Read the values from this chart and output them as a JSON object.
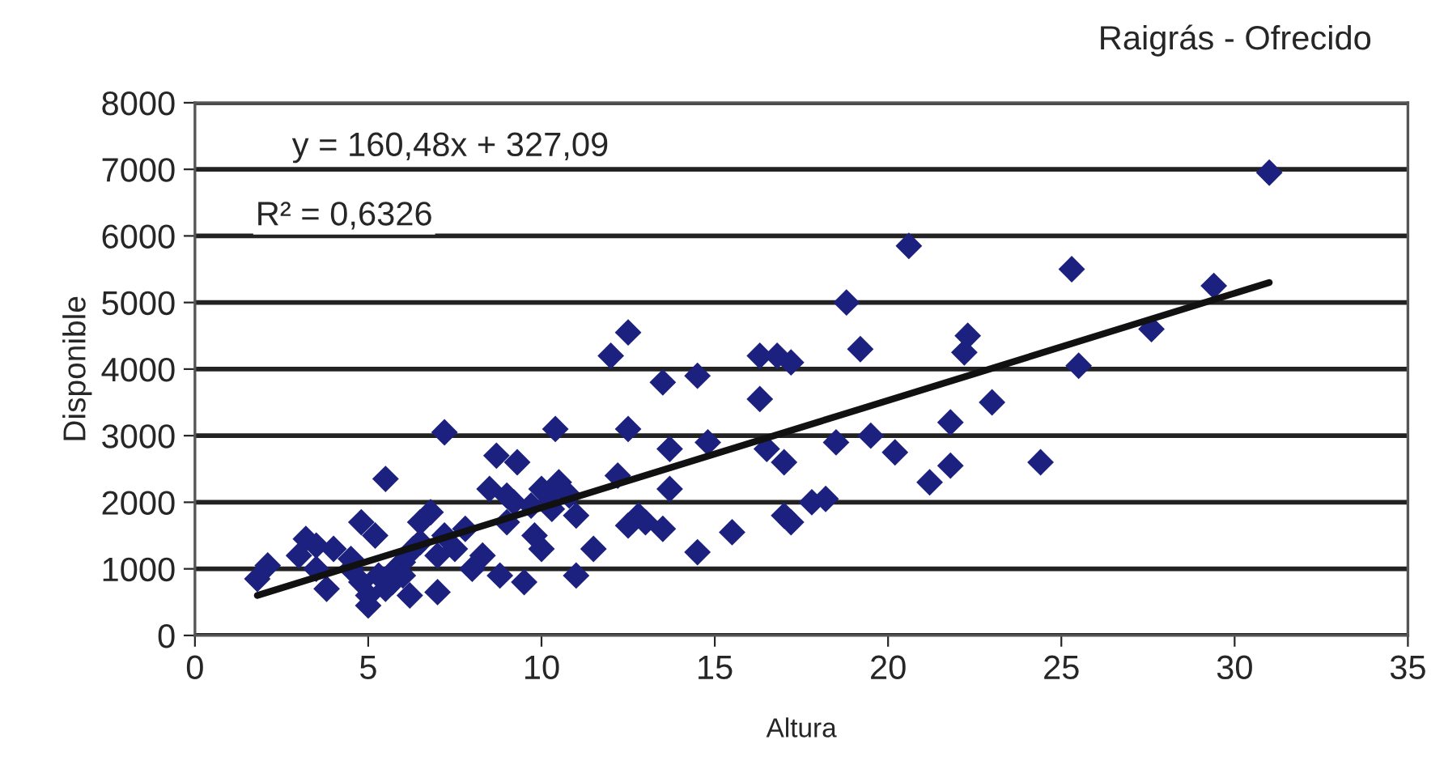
{
  "chart_data": {
    "type": "scatter",
    "title": "Raigrás - Ofrecido",
    "xlabel": "Altura",
    "ylabel": "Disponible",
    "annotations": [
      "y = 160,48x + 327,09",
      "R² = 0,6326"
    ],
    "series": [
      {
        "color": "#1c2180",
        "marker": "diamond",
        "x": [
          1.8,
          2.1,
          3.0,
          3.2,
          3.5,
          3.8,
          3.5,
          4.0,
          4.5,
          4.8,
          4.8,
          5.0,
          5.0,
          5.2,
          5.3,
          5.5,
          5.5,
          5.8,
          6.0,
          6.2,
          6.5,
          6.5,
          6.8,
          7.0,
          7.2,
          7.2,
          7.5,
          7.8,
          8.0,
          8.3,
          8.5,
          8.7,
          8.8,
          9.0,
          9.2,
          9.3,
          9.5,
          9.8,
          10.0,
          10.0,
          10.3,
          10.4,
          10.5,
          10.8,
          11.0,
          11.0,
          11.5,
          12.0,
          12.2,
          12.5,
          12.5,
          12.5,
          12.8,
          13.0,
          13.5,
          13.7,
          13.7,
          13.5,
          14.5,
          14.5,
          14.8,
          15.5,
          16.3,
          16.3,
          16.5,
          16.8,
          17.0,
          17.0,
          17.2,
          17.2,
          17.8,
          18.2,
          18.5,
          18.8,
          19.2,
          19.5,
          20.2,
          20.6,
          21.2,
          21.8,
          21.8,
          22.2,
          22.3,
          23.0,
          24.4,
          25.3,
          25.5,
          27.6,
          29.4,
          31.0,
          4.5,
          5.7,
          6.3,
          6.0,
          7.0,
          9.0,
          9.7,
          10.2
        ],
        "values": [
          850,
          1050,
          1200,
          1450,
          1350,
          700,
          1000,
          1300,
          1150,
          1700,
          800,
          600,
          450,
          1500,
          900,
          2350,
          700,
          1000,
          1100,
          600,
          1700,
          1400,
          1850,
          650,
          3050,
          1500,
          1300,
          1600,
          1000,
          1200,
          2200,
          2700,
          900,
          1700,
          2000,
          2600,
          800,
          1500,
          2200,
          1300,
          1900,
          3100,
          2300,
          2100,
          1800,
          900,
          1300,
          4200,
          2400,
          4550,
          3100,
          1650,
          1800,
          1700,
          3800,
          2800,
          2200,
          1600,
          3900,
          1250,
          2900,
          1550,
          3550,
          4200,
          2800,
          4200,
          2600,
          1800,
          4100,
          1700,
          2000,
          2050,
          2900,
          5000,
          4300,
          3000,
          2750,
          5850,
          2300,
          2550,
          3200,
          4250,
          4500,
          3500,
          2600,
          5500,
          4050,
          4600,
          5250,
          6950,
          1000,
          800,
          1300,
          900,
          1200,
          2100,
          1950,
          2100
        ]
      },
      {
        "type": "line",
        "color": "#111111",
        "line_style": "solid",
        "x": [
          1.8,
          31.0
        ],
        "values": [
          600,
          5300
        ]
      }
    ],
    "xlim": [
      0,
      35
    ],
    "xticks": [
      0,
      5,
      10,
      15,
      20,
      25,
      30,
      35
    ],
    "ylim": [
      0,
      8000
    ],
    "yticks": [
      0,
      1000,
      2000,
      3000,
      4000,
      5000,
      6000,
      7000,
      8000
    ],
    "grid": "y",
    "legend": false
  }
}
